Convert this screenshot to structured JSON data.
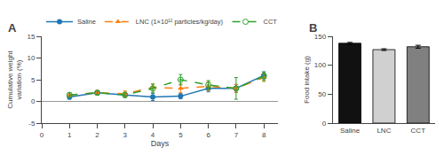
{
  "chart_data": [
    {
      "type": "line",
      "title": "A",
      "xlabel": "Days",
      "ylabel": "Cumulative weight\nvariation (%)",
      "x": [
        1,
        2,
        3,
        4,
        5,
        6,
        7,
        8
      ],
      "series": [
        {
          "name": "Saline",
          "values": [
            1.0,
            2.0,
            1.5,
            1.0,
            1.2,
            3.0,
            3.0,
            6.0
          ],
          "errors": [
            0.5,
            0.4,
            0.5,
            0.8,
            0.6,
            0.8,
            0.9,
            0.8
          ],
          "marker": "circle",
          "line_style": "solid"
        },
        {
          "name": "LNC (1×10¹² particles/kg/day)",
          "values": [
            1.5,
            2.0,
            1.8,
            3.2,
            3.0,
            3.5,
            3.0,
            5.5
          ],
          "errors": [
            0.5,
            0.5,
            0.6,
            0.8,
            1.0,
            1.0,
            0.9,
            0.9
          ],
          "marker": "triangle",
          "line_style": "dashed"
        },
        {
          "name": "CCT",
          "values": [
            1.5,
            2.0,
            1.5,
            3.0,
            5.0,
            3.8,
            3.0,
            5.8
          ],
          "errors": [
            0.5,
            0.5,
            0.6,
            1.0,
            1.2,
            1.0,
            2.5,
            1.0
          ],
          "marker": "open circle",
          "line_style": "dashed"
        }
      ],
      "xlim": [
        0,
        8.5
      ],
      "xticks": [
        0,
        1,
        2,
        3,
        4,
        5,
        6,
        7,
        8
      ],
      "ylim": [
        -5,
        15
      ],
      "yticks": [
        -5,
        0,
        5,
        10,
        15
      ],
      "legend": "top",
      "grid": false
    },
    {
      "type": "bar",
      "title": "B",
      "ylabel": "Food intake (g)",
      "categories": [
        "Saline",
        "LNC",
        "CCT"
      ],
      "values": [
        138,
        127,
        132
      ],
      "errors": [
        1.5,
        1.5,
        2.5
      ],
      "colors": [
        "#111111",
        "#d0d0d0",
        "#808080"
      ],
      "ylim": [
        0,
        150
      ],
      "yticks": [
        0,
        50,
        100,
        150
      ],
      "grid": false
    }
  ]
}
